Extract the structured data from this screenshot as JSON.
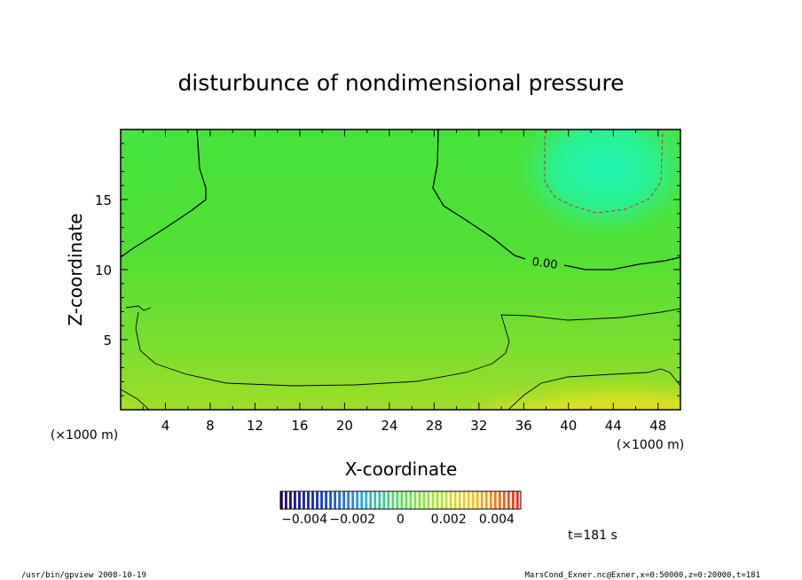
{
  "chart_data": {
    "type": "heatmap",
    "title": "disturbunce of nondimensional pressure",
    "xlabel": "X-coordinate",
    "ylabel": "Z-coordinate",
    "x_unit": "(×1000 m)",
    "x_unit_right": "(×1000 m)",
    "xlim": [
      0,
      50
    ],
    "ylim": [
      0,
      20
    ],
    "x_ticks": [
      "4",
      "8",
      "12",
      "16",
      "20",
      "24",
      "28",
      "32",
      "36",
      "40",
      "44",
      "48"
    ],
    "x_tick_values": [
      4,
      8,
      12,
      16,
      20,
      24,
      28,
      32,
      36,
      40,
      44,
      48
    ],
    "y_ticks": [
      "5",
      "10",
      "15"
    ],
    "y_tick_values": [
      5,
      10,
      15
    ],
    "contour_label": "0.00",
    "colorbar": {
      "tick_labels": [
        "−0.004",
        "−0.002",
        "0",
        "0.002",
        "0.004"
      ],
      "tick_values": [
        -0.004,
        -0.002,
        0,
        0.002,
        0.004
      ],
      "range": [
        -0.005,
        0.005
      ]
    },
    "time_label": "t=181 s",
    "colors": {
      "background_green": "#4ee33a",
      "cyan_low": "#22f4a8",
      "yellow_high": "#f4d010",
      "orange_high": "#f4a010"
    }
  },
  "footer": {
    "left": "/usr/bin/gpview   2008-10-19",
    "right": "MarsCond_Exner.nc@Exner,x=0:50000,z=0:20000,t=181"
  }
}
